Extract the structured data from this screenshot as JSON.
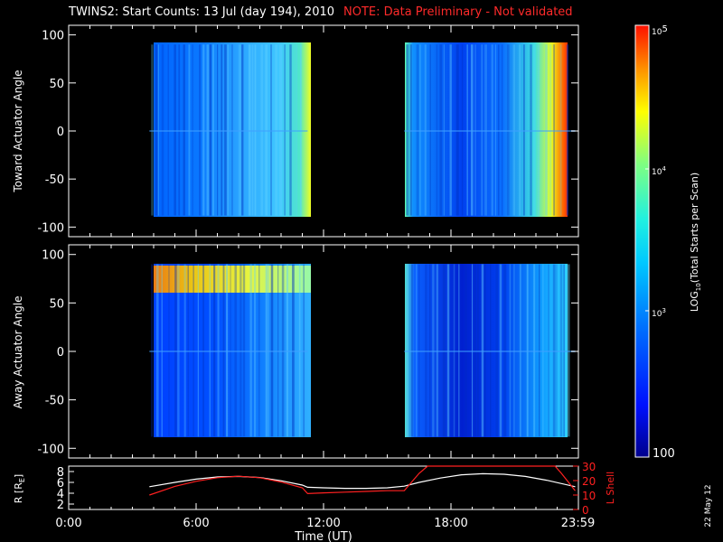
{
  "title": "TWINS2: Start Counts: 13 Jul (day 194), 2010",
  "note": "NOTE: Data Preliminary - Not validated",
  "date_stamp": "22 May 12",
  "colors": {
    "background": "#000000",
    "note": "#ff2a2a",
    "r_line": "#ffffff",
    "l_line": "#ff2020"
  },
  "chart_data": [
    {
      "type": "heatmap",
      "panel": "toward",
      "ylabel": "Toward Actuator Angle",
      "ylim": [
        -110,
        110
      ],
      "yticks": [
        100,
        50,
        0,
        -50,
        -100
      ],
      "xlim": [
        0,
        24
      ],
      "data_blocks": [
        {
          "x": [
            3.8,
            11.25
          ],
          "y": [
            -88,
            90
          ]
        },
        {
          "x": [
            15.8,
            23.85
          ],
          "y": [
            -88,
            90
          ]
        }
      ]
    },
    {
      "type": "heatmap",
      "panel": "away",
      "ylabel": "Away Actuator Angle",
      "ylim": [
        -110,
        110
      ],
      "yticks": [
        100,
        50,
        0,
        -50,
        -100
      ],
      "xlim": [
        0,
        24
      ],
      "data_blocks": [
        {
          "x": [
            3.8,
            11.25
          ],
          "y": [
            -88,
            90
          ]
        },
        {
          "x": [
            15.8,
            23.85
          ],
          "y": [
            -88,
            90
          ]
        }
      ]
    },
    {
      "type": "line",
      "panel": "orbit",
      "xlabel": "Time (UT)",
      "xticks": [
        "0:00",
        "6:00",
        "12:00",
        "18:00",
        "23:59"
      ],
      "xtick_values": [
        0,
        6,
        12,
        18,
        23.98
      ],
      "xlim": [
        0,
        24
      ],
      "ylabel_left": "R [R",
      "ylabel_left_sub": "E",
      "ylabel_left_close": "]",
      "ylim_left": [
        1,
        9
      ],
      "yticks_left": [
        2,
        4,
        6,
        8
      ],
      "ylabel_right": "L Shell",
      "ylim_right": [
        0,
        30
      ],
      "yticks_right": [
        0,
        10,
        20,
        30
      ],
      "series": [
        {
          "axis": "left",
          "x": [
            3.8,
            5,
            6,
            7,
            8,
            9,
            10,
            11,
            11.25,
            12,
            13,
            14,
            15,
            15.8,
            16.5,
            17.5,
            18.5,
            19.5,
            20.5,
            21.5,
            22.5,
            23.85
          ],
          "values": [
            5.2,
            6.0,
            6.6,
            7.0,
            7.1,
            6.9,
            6.3,
            5.5,
            5.1,
            5.0,
            4.9,
            4.9,
            5.0,
            5.3,
            6.0,
            6.8,
            7.4,
            7.6,
            7.5,
            7.1,
            6.4,
            5.2
          ]
        },
        {
          "axis": "right",
          "x": [
            3.8,
            5,
            6,
            7,
            8,
            9,
            10,
            11,
            11.25,
            12,
            13,
            14,
            15,
            15.8,
            16.5,
            16.9,
            22.9,
            23.2,
            23.85
          ],
          "values": [
            10,
            16,
            19.5,
            22,
            23,
            22,
            19,
            15,
            11,
            11.5,
            12,
            12.5,
            13,
            13,
            25,
            31,
            31,
            25,
            13
          ]
        }
      ]
    },
    {
      "type": "colorbar",
      "label_main": "LOG",
      "label_sub": "10",
      "label_rest": "(Total Starts per Scan)",
      "scale": "log",
      "range": [
        100,
        100000
      ],
      "tick_labels": [
        "100",
        "10",
        "3",
        "10",
        "4",
        "10",
        "5"
      ]
    }
  ]
}
